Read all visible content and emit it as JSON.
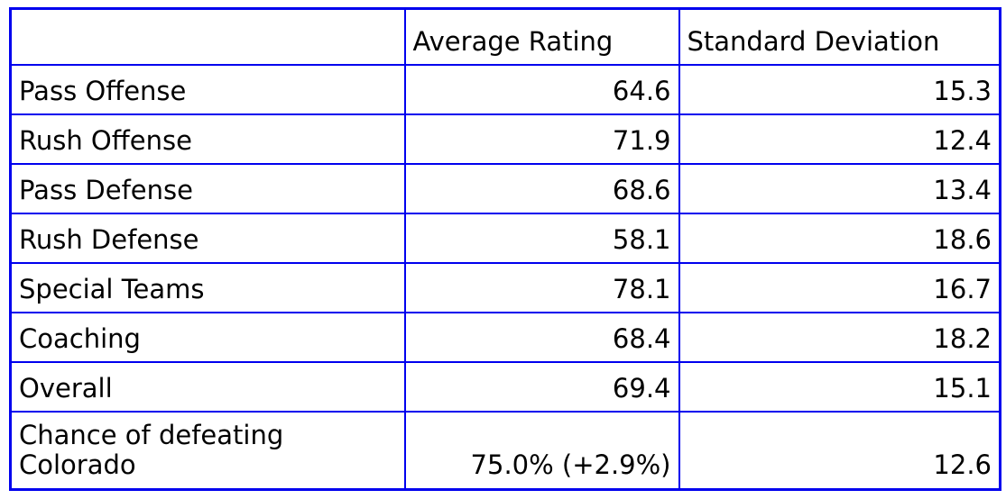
{
  "table": {
    "border_color": "#0000ee",
    "text_color": "#000000",
    "background": "#ffffff",
    "columns": {
      "corner": "",
      "avg": "Average Rating",
      "sd": "Standard Deviation"
    },
    "rows": [
      {
        "label": "Pass Offense",
        "avg": "64.6",
        "sd": "15.3"
      },
      {
        "label": "Rush Offense",
        "avg": "71.9",
        "sd": "12.4"
      },
      {
        "label": "Pass Defense",
        "avg": "68.6",
        "sd": "13.4"
      },
      {
        "label": "Rush Defense",
        "avg": "58.1",
        "sd": "18.6"
      },
      {
        "label": "Special Teams",
        "avg": "78.1",
        "sd": "16.7"
      },
      {
        "label": "Coaching",
        "avg": "68.4",
        "sd": "18.2"
      },
      {
        "label": "Overall",
        "avg": "69.4",
        "sd": "15.1"
      },
      {
        "label": "Chance of defeating Colorado",
        "avg": "75.0% (+2.9%)",
        "sd": "12.6"
      }
    ]
  },
  "chart_data": {
    "type": "table",
    "title": "",
    "columns": [
      "",
      "Average Rating",
      "Standard Deviation"
    ],
    "rows": [
      [
        "Pass Offense",
        64.6,
        15.3
      ],
      [
        "Rush Offense",
        71.9,
        12.4
      ],
      [
        "Pass Defense",
        68.6,
        13.4
      ],
      [
        "Rush Defense",
        58.1,
        18.6
      ],
      [
        "Special Teams",
        78.1,
        16.7
      ],
      [
        "Coaching",
        68.4,
        18.2
      ],
      [
        "Overall",
        69.4,
        15.1
      ],
      [
        "Chance of defeating Colorado",
        "75.0% (+2.9%)",
        12.6
      ]
    ]
  }
}
